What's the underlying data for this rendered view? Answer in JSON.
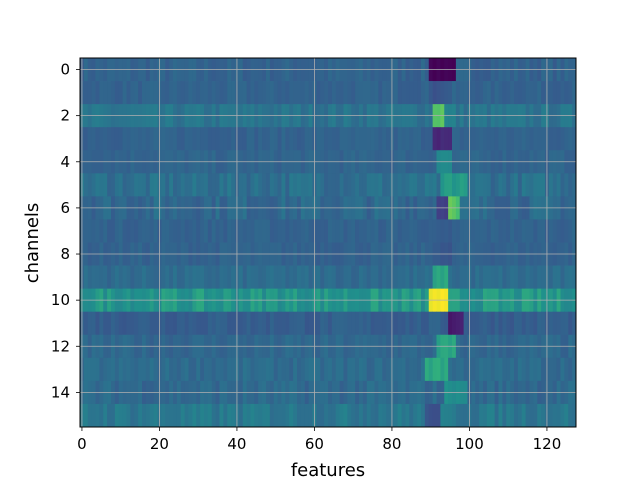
{
  "chart_data": {
    "type": "heatmap",
    "title": "",
    "xlabel": "features",
    "ylabel": "channels",
    "xlim": [
      -0.5,
      127.5
    ],
    "ylim": [
      15.5,
      -0.5
    ],
    "n_cols": 128,
    "n_rows": 16,
    "colormap": "viridis",
    "grid": true,
    "x_ticks": [
      0,
      20,
      40,
      60,
      80,
      100,
      120
    ],
    "y_ticks": [
      0,
      2,
      4,
      6,
      8,
      10,
      12,
      14
    ],
    "row_base": [
      0.4,
      0.4,
      0.48,
      0.4,
      0.41,
      0.46,
      0.43,
      0.4,
      0.4,
      0.44,
      0.64,
      0.38,
      0.42,
      0.44,
      0.43,
      0.5
    ],
    "row_noise": [
      0.04,
      0.03,
      0.05,
      0.03,
      0.03,
      0.06,
      0.06,
      0.03,
      0.03,
      0.04,
      0.06,
      0.04,
      0.04,
      0.04,
      0.05,
      0.06
    ],
    "features": [
      {
        "row": 0,
        "cols": [
          90,
          96
        ],
        "value": 0.0
      },
      {
        "row": 1,
        "cols": [
          90,
          95
        ],
        "value": 0.34
      },
      {
        "row": 2,
        "cols": [
          91,
          93
        ],
        "value": 0.82
      },
      {
        "row": 2,
        "cols": [
          94,
          96
        ],
        "value": 0.55
      },
      {
        "row": 3,
        "cols": [
          91,
          95
        ],
        "value": 0.15
      },
      {
        "row": 4,
        "cols": [
          92,
          95
        ],
        "value": 0.58
      },
      {
        "row": 5,
        "cols": [
          93,
          99
        ],
        "value": 0.66
      },
      {
        "row": 6,
        "cols": [
          95,
          97
        ],
        "value": 0.8
      },
      {
        "row": 6,
        "cols": [
          92,
          94
        ],
        "value": 0.22
      },
      {
        "row": 7,
        "cols": [
          91,
          96
        ],
        "value": 0.38
      },
      {
        "row": 8,
        "cols": [
          91,
          95
        ],
        "value": 0.34
      },
      {
        "row": 9,
        "cols": [
          91,
          94
        ],
        "value": 0.7
      },
      {
        "row": 10,
        "cols": [
          90,
          94
        ],
        "value": 1.0
      },
      {
        "row": 11,
        "cols": [
          95,
          98
        ],
        "value": 0.1
      },
      {
        "row": 12,
        "cols": [
          92,
          96
        ],
        "value": 0.68
      },
      {
        "row": 13,
        "cols": [
          89,
          94
        ],
        "value": 0.7
      },
      {
        "row": 14,
        "cols": [
          94,
          99
        ],
        "value": 0.62
      },
      {
        "row": 15,
        "cols": [
          89,
          92
        ],
        "value": 0.32
      }
    ]
  }
}
